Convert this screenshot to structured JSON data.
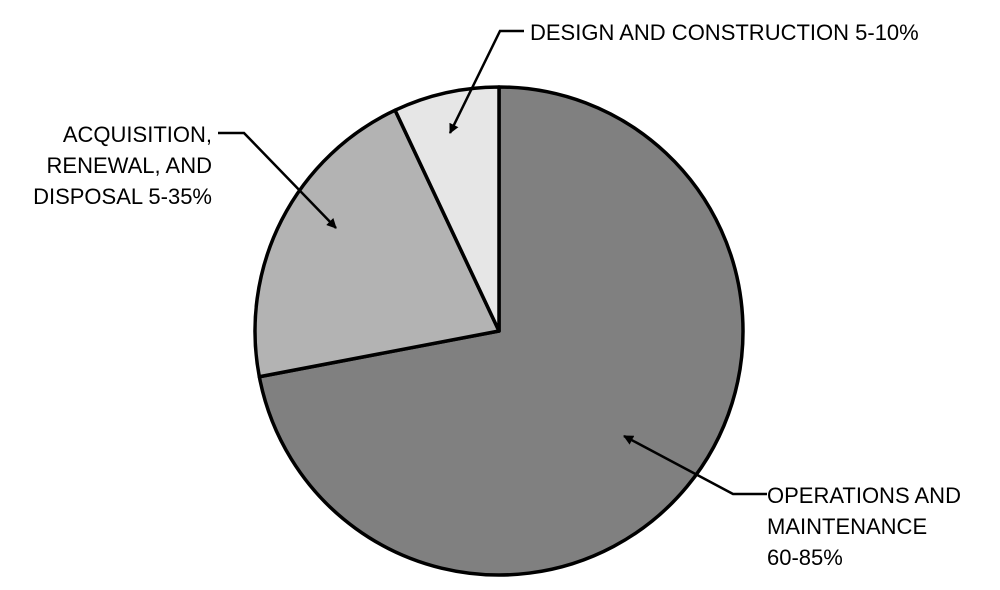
{
  "chart_data": {
    "type": "pie",
    "title": "",
    "legend": "none",
    "slices": [
      {
        "label_lines": [
          "OPERATIONS AND",
          "MAINTENANCE",
          "60-85%"
        ],
        "value": 72,
        "color": "#808080"
      },
      {
        "label_lines": [
          "ACQUISITION,",
          "RENEWAL, AND",
          "DISPOSAL 5-35%"
        ],
        "value": 21,
        "color": "#b3b3b3"
      },
      {
        "label_lines": [
          "DESIGN AND CONSTRUCTION 5-10%"
        ],
        "value": 7,
        "color": "#e6e6e6"
      }
    ]
  }
}
